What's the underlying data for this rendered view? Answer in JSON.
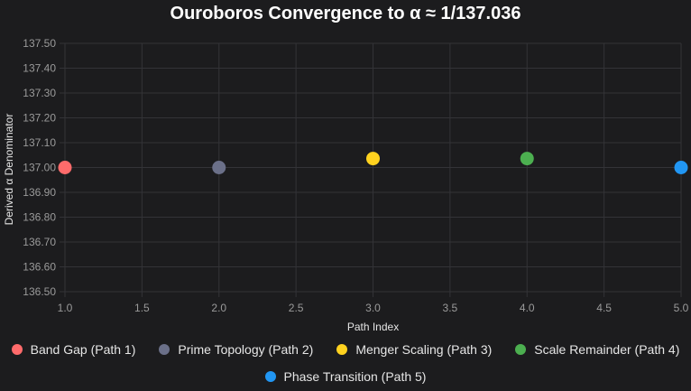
{
  "chart_data": {
    "type": "scatter",
    "title": "Ouroboros Convergence to α ≈ 1/137.036",
    "xlabel": "Path Index",
    "ylabel": "Derived α Denominator",
    "xlim": [
      1.0,
      5.0
    ],
    "ylim": [
      136.5,
      137.5
    ],
    "x_ticks": [
      "1.0",
      "1.5",
      "2.0",
      "2.5",
      "3.0",
      "3.5",
      "4.0",
      "4.5",
      "5.0"
    ],
    "y_ticks": [
      "137.50",
      "137.40",
      "137.30",
      "137.20",
      "137.10",
      "137.00",
      "136.90",
      "136.80",
      "136.70",
      "136.60",
      "136.50"
    ],
    "grid": true,
    "legend_position": "bottom",
    "series": [
      {
        "name": "Band Gap (Path 1)",
        "color": "#ff6b6b",
        "x": 1,
        "y": 137.0
      },
      {
        "name": "Prime Topology (Path 2)",
        "color": "#6b7089",
        "x": 2,
        "y": 137.0
      },
      {
        "name": "Menger Scaling (Path 3)",
        "color": "#ffd21f",
        "x": 3,
        "y": 137.036
      },
      {
        "name": "Scale Remainder (Path 4)",
        "color": "#4caf50",
        "x": 4,
        "y": 137.036
      },
      {
        "name": "Phase Transition (Path 5)",
        "color": "#2196f3",
        "x": 5,
        "y": 137.0
      }
    ]
  }
}
